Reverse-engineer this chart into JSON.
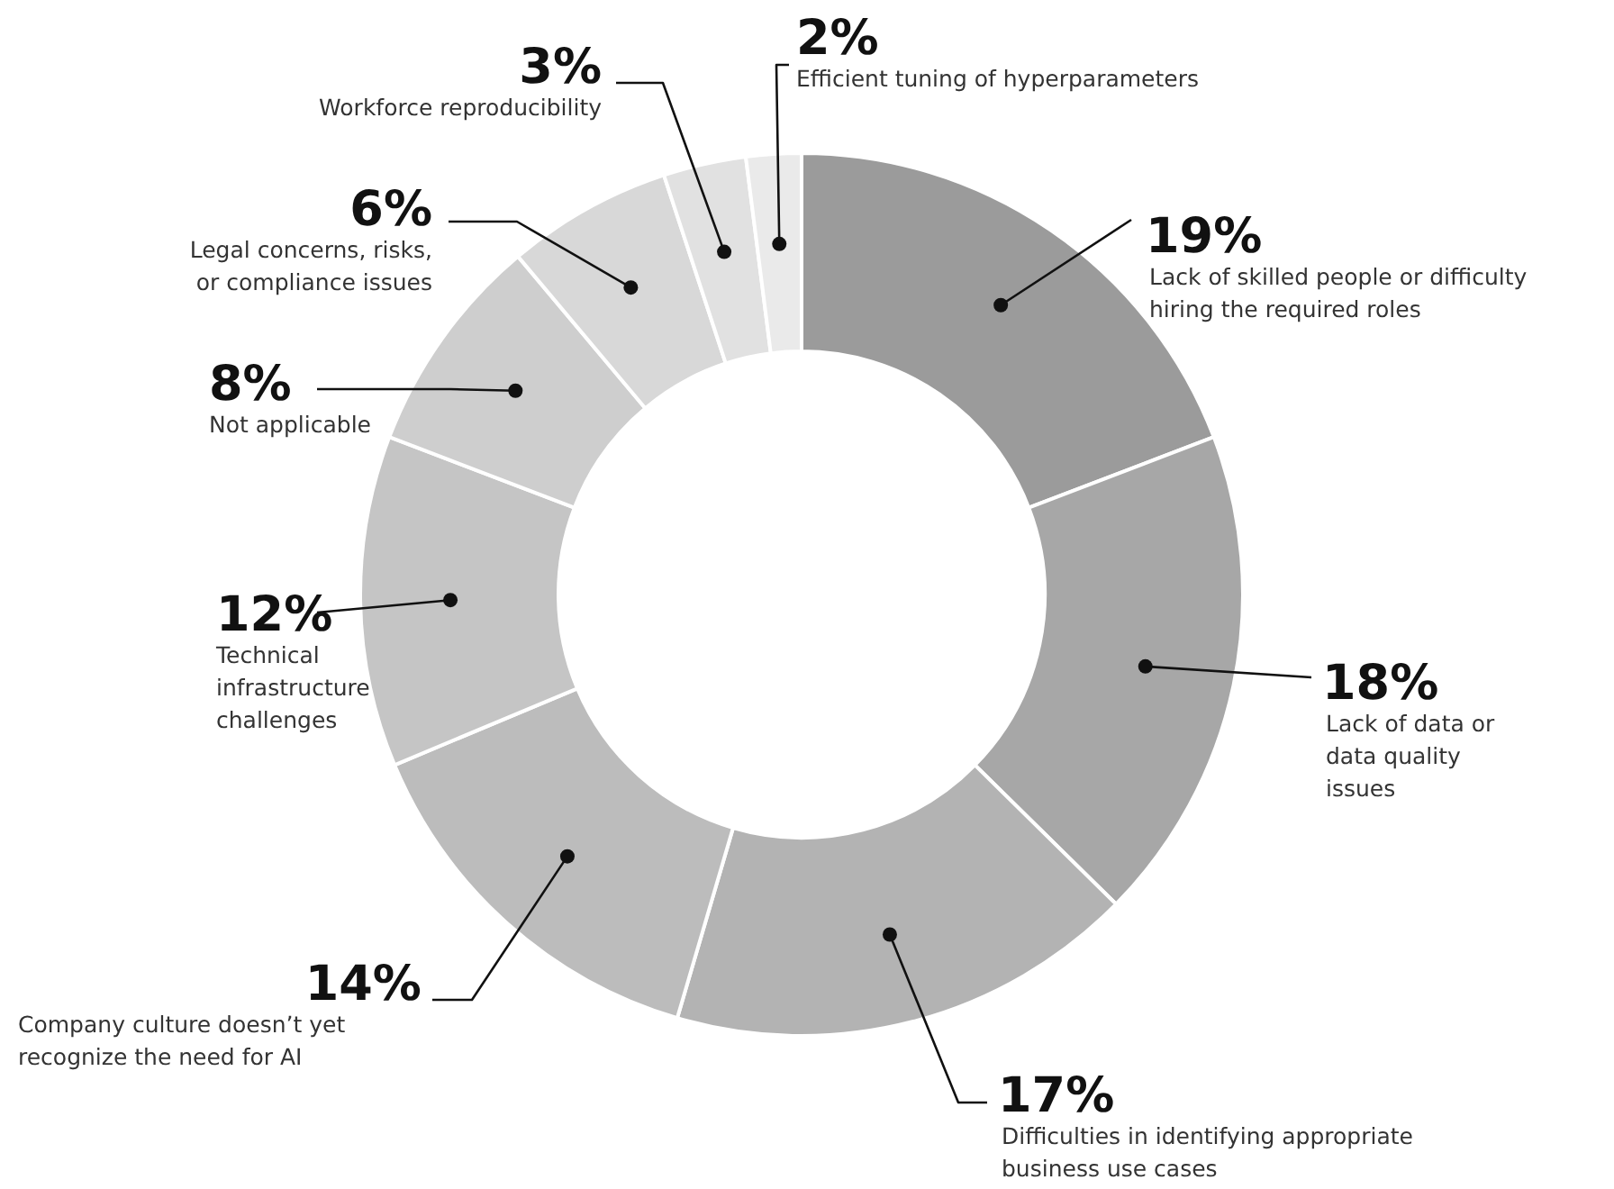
{
  "chart_data": {
    "type": "donut",
    "categories": [
      "Lack of skilled people or difficulty hiring the required roles",
      "Lack of data or data quality issues",
      "Difficulties in identifying appropriate business use cases",
      "Company culture doesn’t yet recognize the need for AI",
      "Technical infrastructure challenges",
      "Not applicable",
      "Legal concerns, risks, or compliance issues",
      "Workforce reproducibility",
      "Efficient tuning of hyperparameters"
    ],
    "values": [
      19,
      18,
      17,
      14,
      12,
      8,
      6,
      3,
      2
    ],
    "value_labels": [
      "19%",
      "18%",
      "17%",
      "14%",
      "12%",
      "8%",
      "6%",
      "3%",
      "2%"
    ],
    "colors": [
      "#9b9b9b",
      "#a7a7a7",
      "#b3b3b3",
      "#bcbcbc",
      "#c5c5c5",
      "#cecece",
      "#d8d8d8",
      "#e1e1e1",
      "#eaeaea"
    ]
  }
}
